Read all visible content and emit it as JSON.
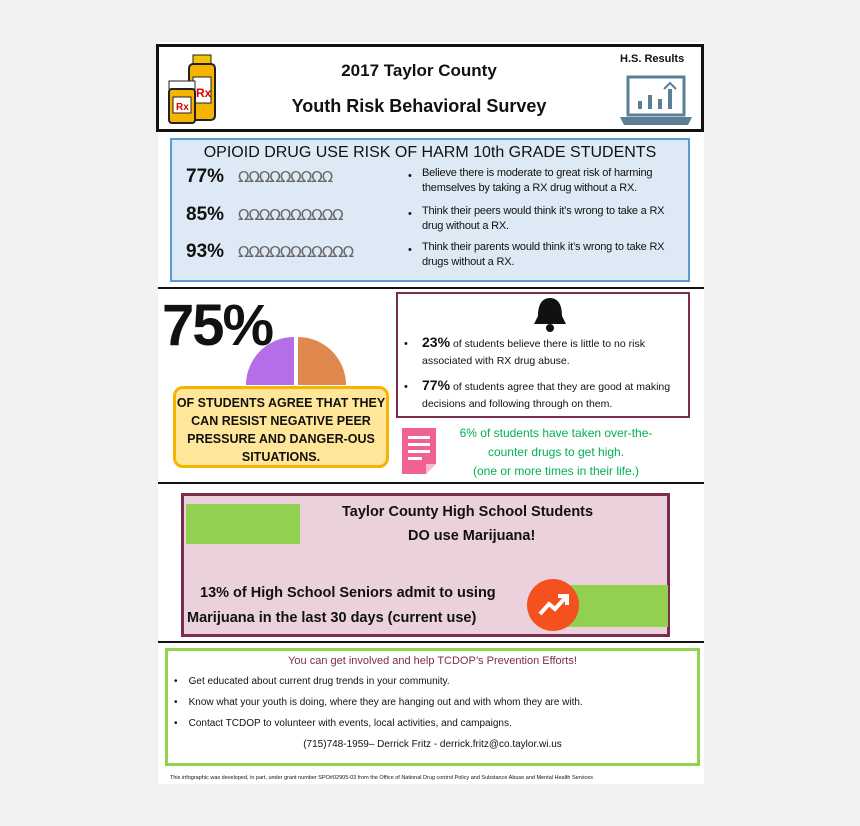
{
  "header": {
    "title_line1": "2017 Taylor County",
    "title_line2": "Youth Risk Behavioral Survey",
    "badge": "H.S. Results",
    "icons": [
      "prescription-bottles-icon",
      "laptop-chart-icon"
    ]
  },
  "opioid": {
    "heading": "OPIOID DRUG USE RISK OF HARM 10th GRADE STUDENTS",
    "rows": [
      {
        "percent": "77%",
        "value": 77,
        "text": "Believe there is moderate to great risk of harming themselves by taking a RX drug without a RX."
      },
      {
        "percent": "85%",
        "value": 85,
        "text": "Think their peers would think it’s wrong to take a RX drug without a RX."
      },
      {
        "percent": "93%",
        "value": 93,
        "text": "Think their parents would think it’s wrong to take RX drugs without a RX."
      }
    ]
  },
  "peer": {
    "percent": "75%",
    "value": 75,
    "text": "OF STUDENTS AGREE THAT THEY CAN RESIST NEGATIVE PEER PRESSURE AND DANGER-OUS SITUATIONS.",
    "colors": {
      "purple": "#b36ee8",
      "orange": "#e0894f"
    }
  },
  "decisions": {
    "items": [
      {
        "percent": "23%",
        "text": " of students believe there is little to no risk associated with RX drug abuse."
      },
      {
        "percent": "77%",
        "text": " of students agree that they are good at making decisions and following through on them."
      }
    ]
  },
  "otc": {
    "line1": "6% of students have taken over-the-",
    "line2": "counter drugs to get high.",
    "line3": "(one or more times in their life.)",
    "color": "#00b050"
  },
  "marijuana": {
    "title1": "Taylor County High School Students",
    "title2": "DO use Marijuana!",
    "stat1": "13% of High School Seniors admit to using",
    "stat2": "Marijuana in the last 30 days (current use)",
    "accent": "#92d050"
  },
  "involved": {
    "heading": "You can get involved and help TCDOP’s Prevention Efforts!",
    "items": [
      "Get educated about current drug trends in your community.",
      "Know what your youth is doing, where they are hanging out and with whom they are with.",
      "Contact TCDOP to volunteer with events, local activities, and campaigns."
    ],
    "contact": "(715)748-1959– Derrick Fritz - derrick.fritz@co.taylor.wi.us"
  },
  "footer": "This infographic was developed, in part, under grant number SPO#02905-03 from the Office of National Drug control Policy and Substance Abuse and Mental Health Services"
}
